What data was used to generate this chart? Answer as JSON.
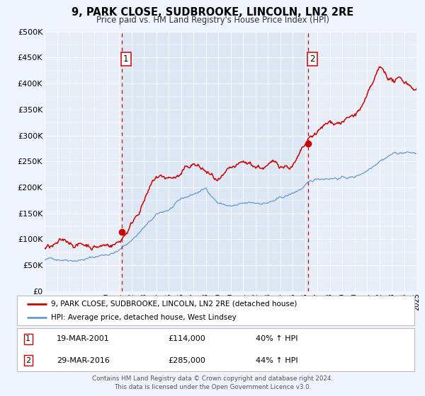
{
  "title": "9, PARK CLOSE, SUDBROOKE, LINCOLN, LN2 2RE",
  "subtitle": "Price paid vs. HM Land Registry's House Price Index (HPI)",
  "legend_line1": "9, PARK CLOSE, SUDBROOKE, LINCOLN, LN2 2RE (detached house)",
  "legend_line2": "HPI: Average price, detached house, West Lindsey",
  "sale1_date": "19-MAR-2001",
  "sale1_price": "£114,000",
  "sale1_hpi": "40% ↑ HPI",
  "sale1_year": 2001.21,
  "sale1_value": 114000,
  "sale2_date": "29-MAR-2016",
  "sale2_price": "£285,000",
  "sale2_hpi": "44% ↑ HPI",
  "sale2_year": 2016.24,
  "sale2_value": 285000,
  "ylim": [
    0,
    500000
  ],
  "yticks": [
    0,
    50000,
    100000,
    150000,
    200000,
    250000,
    300000,
    350000,
    400000,
    450000,
    500000
  ],
  "xlim": [
    1995,
    2025
  ],
  "background_color": "#f0f4ff",
  "plot_bg_color": "#e8eef8",
  "grid_color": "#ffffff",
  "red_line_color": "#cc0000",
  "blue_line_color": "#6699cc",
  "vline_color": "#cc0000",
  "shade_color": "#dce6f5",
  "footer_text": "Contains HM Land Registry data © Crown copyright and database right 2024.\nThis data is licensed under the Open Government Licence v3.0.",
  "hpi_kp_x": [
    1995,
    1996,
    1997,
    1998,
    1999,
    2000,
    2001,
    2002,
    2003,
    2004,
    2005,
    2006,
    2007,
    2008,
    2009,
    2010,
    2011,
    2012,
    2013,
    2014,
    2015,
    2016,
    2017,
    2018,
    2019,
    2020,
    2021,
    2022,
    2023,
    2024,
    2025
  ],
  "hpi_kp_y": [
    60000,
    62000,
    65000,
    68000,
    72000,
    78000,
    85000,
    105000,
    130000,
    150000,
    160000,
    175000,
    185000,
    195000,
    170000,
    163000,
    163000,
    162000,
    165000,
    170000,
    178000,
    192000,
    202000,
    208000,
    210000,
    210000,
    225000,
    250000,
    265000,
    268000,
    265000
  ],
  "house_kp_x": [
    1995,
    1996,
    1997,
    1998,
    1999,
    2000,
    2001,
    2002,
    2003,
    2004,
    2005,
    2006,
    2007,
    2008,
    2009,
    2010,
    2011,
    2012,
    2013,
    2014,
    2015,
    2016,
    2017,
    2018,
    2019,
    2020,
    2021,
    2022,
    2023,
    2024,
    2025
  ],
  "house_kp_y": [
    83000,
    87000,
    90000,
    92000,
    96000,
    102000,
    114000,
    155000,
    210000,
    250000,
    248000,
    255000,
    275000,
    260000,
    238000,
    243000,
    246000,
    244000,
    247000,
    250000,
    256000,
    285000,
    308000,
    322000,
    333000,
    342000,
    372000,
    418000,
    400000,
    395000,
    390000
  ]
}
